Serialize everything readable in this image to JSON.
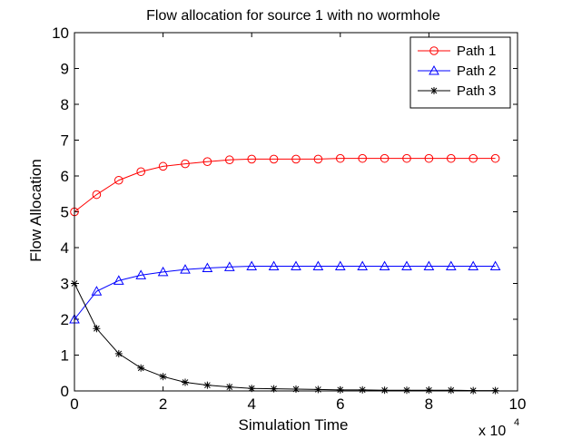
{
  "chart_data": {
    "type": "line",
    "title": "Flow allocation for source 1 with no wormhole",
    "xlabel": "Simulation Time",
    "ylabel": "Flow Allocation",
    "xlim": [
      0,
      100000
    ],
    "ylim": [
      0,
      10
    ],
    "x_ticks": [
      0,
      20000,
      40000,
      60000,
      80000,
      100000
    ],
    "x_tick_labels": [
      "0",
      "2",
      "4",
      "6",
      "8",
      "10"
    ],
    "y_ticks": [
      0,
      1,
      2,
      3,
      4,
      5,
      6,
      7,
      8,
      9,
      10
    ],
    "y_tick_labels": [
      "0",
      "1",
      "2",
      "3",
      "4",
      "5",
      "6",
      "7",
      "8",
      "9",
      "10"
    ],
    "x_multiplier_base": "x 10",
    "x_multiplier_exp": "4",
    "legend_position": "top-right",
    "x": [
      0,
      5000,
      10000,
      15000,
      20000,
      25000,
      30000,
      35000,
      40000,
      45000,
      50000,
      55000,
      60000,
      65000,
      70000,
      75000,
      80000,
      85000,
      90000,
      95000
    ],
    "series": [
      {
        "name": "Path 1",
        "color": "#ff0000",
        "marker": "circle",
        "values": [
          5.0,
          5.48,
          5.88,
          6.12,
          6.27,
          6.34,
          6.4,
          6.45,
          6.47,
          6.47,
          6.47,
          6.47,
          6.49,
          6.49,
          6.49,
          6.49,
          6.49,
          6.49,
          6.49,
          6.49
        ]
      },
      {
        "name": "Path 2",
        "color": "#0000ff",
        "marker": "triangle",
        "values": [
          2.0,
          2.78,
          3.08,
          3.23,
          3.32,
          3.39,
          3.43,
          3.46,
          3.48,
          3.48,
          3.48,
          3.48,
          3.48,
          3.48,
          3.48,
          3.48,
          3.48,
          3.48,
          3.48,
          3.48
        ]
      },
      {
        "name": "Path 3",
        "color": "#000000",
        "marker": "star",
        "values": [
          3.0,
          1.74,
          1.04,
          0.64,
          0.4,
          0.24,
          0.16,
          0.11,
          0.07,
          0.06,
          0.05,
          0.04,
          0.03,
          0.03,
          0.02,
          0.02,
          0.02,
          0.02,
          0.01,
          0.01
        ]
      }
    ]
  }
}
